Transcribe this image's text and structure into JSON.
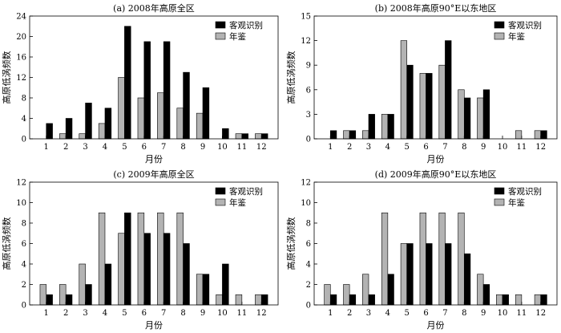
{
  "chart_data": [
    {
      "type": "bar",
      "title": "(a) 2008年高原全区",
      "xlabel": "月份",
      "ylabel": "高原低涡频数",
      "categories": [
        "1",
        "2",
        "3",
        "4",
        "5",
        "6",
        "7",
        "8",
        "9",
        "10",
        "11",
        "12"
      ],
      "ylim": [
        0,
        24
      ],
      "yticks": [
        0,
        4,
        8,
        12,
        16,
        20,
        24
      ],
      "legend_position": "top-right",
      "series": [
        {
          "name": "年鉴",
          "color": "#b3b3b3",
          "values": [
            0,
            1,
            1,
            3,
            12,
            8,
            9,
            6,
            5,
            0,
            1,
            1
          ]
        },
        {
          "name": "客观识别",
          "color": "#000000",
          "values": [
            3,
            4,
            7,
            6,
            22,
            19,
            19,
            13,
            10,
            2,
            1,
            1
          ]
        }
      ]
    },
    {
      "type": "bar",
      "title": "(b) 2008年高原90°E以东地区",
      "xlabel": "月份",
      "ylabel": "高原低涡频数",
      "categories": [
        "1",
        "2",
        "3",
        "4",
        "5",
        "6",
        "7",
        "8",
        "9",
        "10",
        "11",
        "12"
      ],
      "ylim": [
        0,
        15
      ],
      "yticks": [
        0,
        3,
        6,
        9,
        12,
        15
      ],
      "legend_position": "top-right",
      "series": [
        {
          "name": "年鉴",
          "color": "#b3b3b3",
          "values": [
            0,
            1,
            1,
            3,
            12,
            8,
            9,
            6,
            5,
            0,
            1,
            1
          ]
        },
        {
          "name": "客观识别",
          "color": "#000000",
          "values": [
            1,
            1,
            3,
            3,
            9,
            8,
            12,
            5,
            6,
            0,
            0,
            1
          ]
        }
      ]
    },
    {
      "type": "bar",
      "title": "(c) 2009年高原全区",
      "xlabel": "月份",
      "ylabel": "高原低涡频数",
      "categories": [
        "1",
        "2",
        "3",
        "4",
        "5",
        "6",
        "7",
        "8",
        "9",
        "10",
        "11",
        "12"
      ],
      "ylim": [
        0,
        12
      ],
      "yticks": [
        0,
        2,
        4,
        6,
        8,
        10,
        12
      ],
      "legend_position": "top-right",
      "series": [
        {
          "name": "年鉴",
          "color": "#b3b3b3",
          "values": [
            2,
            2,
            4,
            9,
            7,
            9,
            9,
            9,
            3,
            1,
            1,
            1
          ]
        },
        {
          "name": "客观识别",
          "color": "#000000",
          "values": [
            1,
            1,
            2,
            4,
            9,
            7,
            7,
            6,
            3,
            4,
            0,
            1
          ]
        }
      ]
    },
    {
      "type": "bar",
      "title": "(d) 2009年高原90°E以东地区",
      "xlabel": "月份",
      "ylabel": "高原低涡频数",
      "categories": [
        "1",
        "2",
        "3",
        "4",
        "5",
        "6",
        "7",
        "8",
        "9",
        "10",
        "11",
        "12"
      ],
      "ylim": [
        0,
        12
      ],
      "yticks": [
        0,
        2,
        4,
        6,
        8,
        10,
        12
      ],
      "legend_position": "top-right",
      "series": [
        {
          "name": "年鉴",
          "color": "#b3b3b3",
          "values": [
            2,
            2,
            3,
            9,
            6,
            9,
            9,
            9,
            3,
            1,
            1,
            1
          ]
        },
        {
          "name": "客观识别",
          "color": "#000000",
          "values": [
            1,
            1,
            1,
            3,
            6,
            6,
            6,
            5,
            2,
            1,
            0,
            1
          ]
        }
      ]
    }
  ]
}
